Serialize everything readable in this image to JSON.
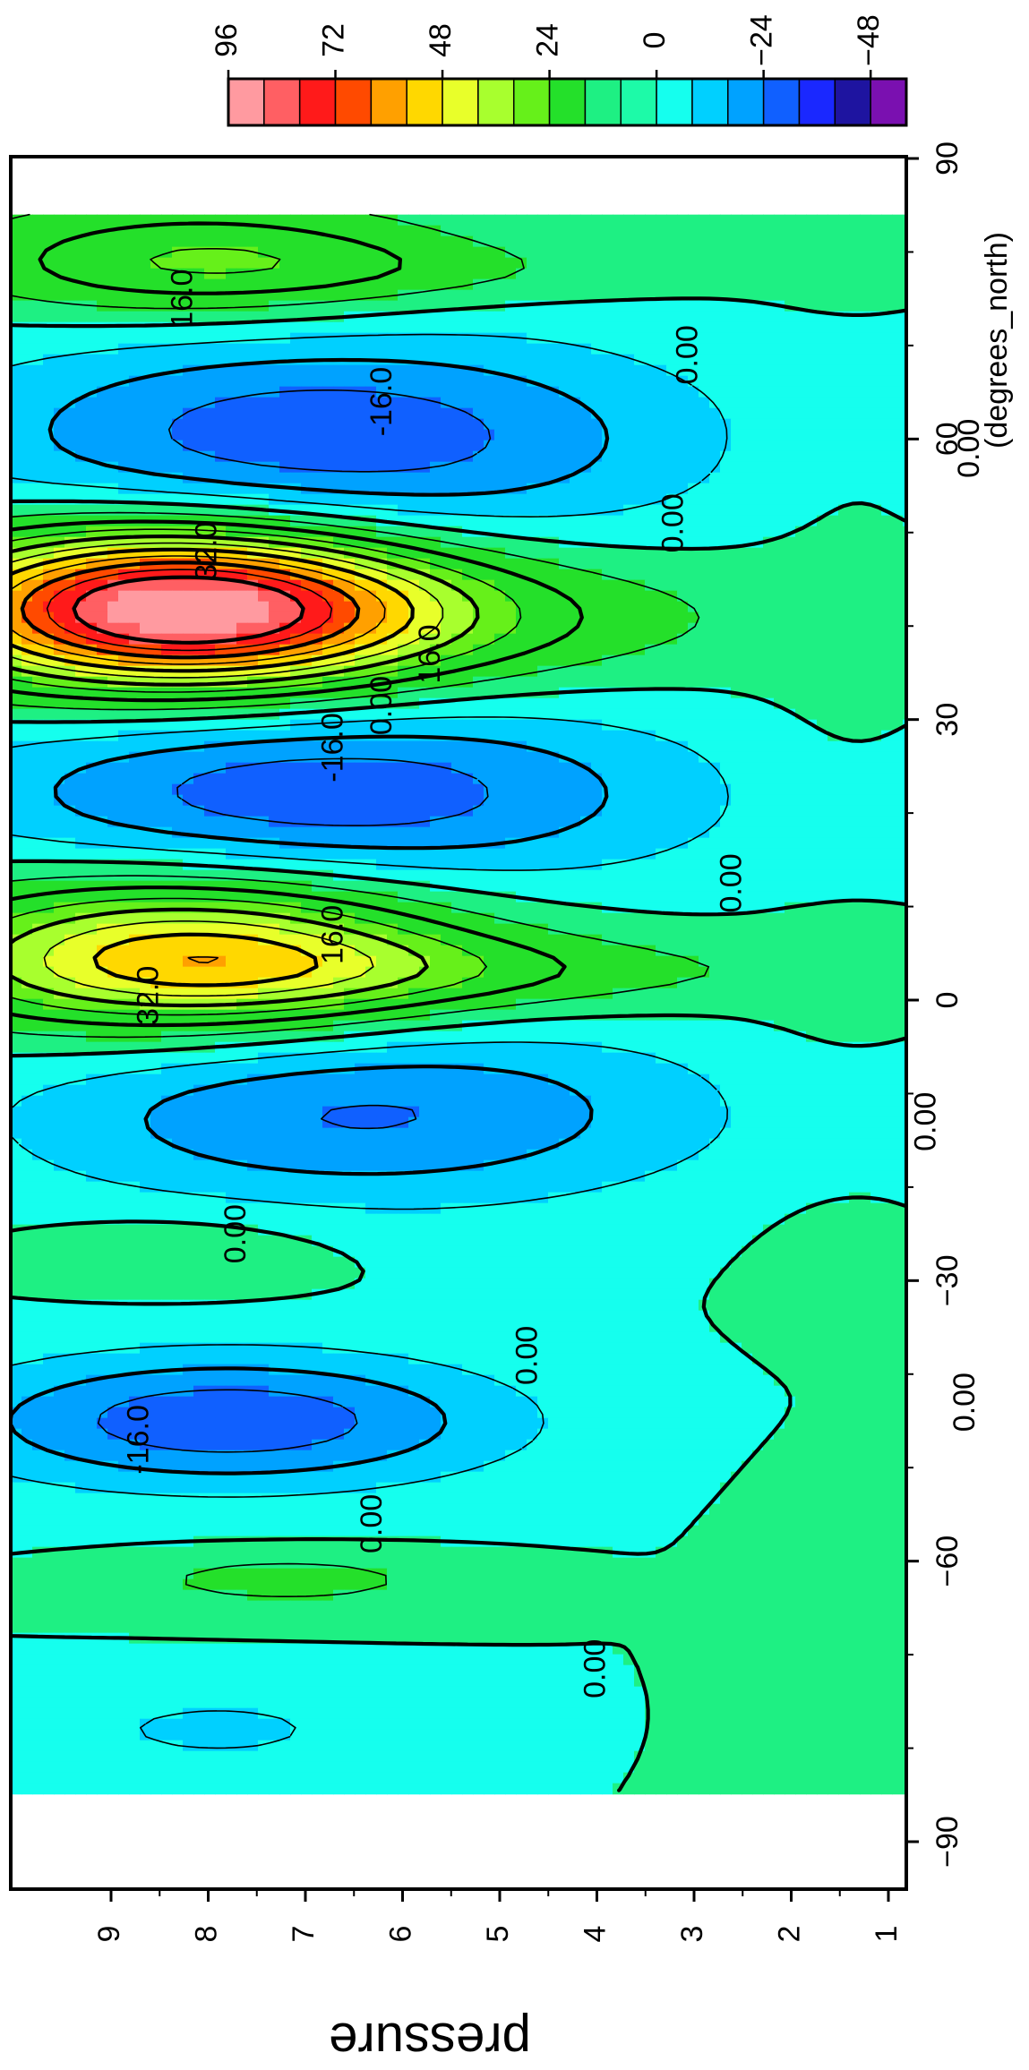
{
  "chart_data": {
    "type": "contour",
    "xlabel": "(degrees_north)",
    "ylabel": "pressure",
    "xlim": [
      -90,
      90
    ],
    "ylim": [
      0,
      9.2
    ],
    "x_ticks": [
      -90,
      -60,
      -30,
      0,
      30,
      60,
      90
    ],
    "y_ticks": [
      1,
      2,
      3,
      4,
      5,
      6,
      7,
      8,
      9
    ],
    "colorbar": {
      "tick_labels": [
        "96",
        "72",
        "48",
        "24",
        "0",
        "−24",
        "−48"
      ],
      "tick_values": [
        96,
        72,
        48,
        24,
        0,
        -24,
        -48
      ],
      "levels": [
        96,
        88,
        80,
        72,
        64,
        56,
        48,
        40,
        32,
        24,
        16,
        8,
        0,
        -8,
        -16,
        -24,
        -32,
        -40,
        -48
      ],
      "colors": [
        "#ff9aa0",
        "#ff5f63",
        "#ff1a1a",
        "#ff4a00",
        "#ffa000",
        "#ffd800",
        "#e8ff2a",
        "#a8ff2e",
        "#66f01a",
        "#24e02a",
        "#1ef083",
        "#1dfaa8",
        "#15ffee",
        "#00d0ff",
        "#00a2ff",
        "#1060ff",
        "#1a28ff",
        "#1e14a0",
        "#7a10b0"
      ]
    },
    "contour_labels": [
      {
        "text": "16.0",
        "lat": 75,
        "p": 8.25
      },
      {
        "text": "0.00",
        "lat": 69,
        "p": 3.05
      },
      {
        "text": "-16.0",
        "lat": 64,
        "p": 6.2
      },
      {
        "text": "0.00",
        "lat": 51,
        "p": 3.2
      },
      {
        "text": "32.0",
        "lat": 48,
        "p": 8.0
      },
      {
        "text": "16.0",
        "lat": 37,
        "p": 5.7
      },
      {
        "text": "0.00",
        "lat": 31.5,
        "p": 6.2
      },
      {
        "text": "-16.0",
        "lat": 27,
        "p": 6.7
      },
      {
        "text": "0.00",
        "lat": 12.5,
        "p": 2.6
      },
      {
        "text": "16.0",
        "lat": 7,
        "p": 6.7
      },
      {
        "text": "32.0",
        "lat": 0.5,
        "p": 8.6
      },
      {
        "text": "0.00",
        "lat": -13,
        "p": 0.6
      },
      {
        "text": "0.00",
        "lat": -25,
        "p": 7.7
      },
      {
        "text": "0.00",
        "lat": -38,
        "p": 4.7
      },
      {
        "text": "-16.0",
        "lat": -47,
        "p": 8.7
      },
      {
        "text": "0.00",
        "lat": -56,
        "p": 6.3
      },
      {
        "text": "0.00",
        "lat": -71.5,
        "p": 4.0
      },
      {
        "text": "0.00",
        "lat": -43,
        "p": 0.2
      },
      {
        "text": "0.00",
        "lat": 59,
        "p": 0.15
      }
    ],
    "features": [
      {
        "kind": "plus",
        "lat": 42,
        "p": 8.3,
        "a": 6,
        "b": 1.8,
        "peak": 90
      },
      {
        "kind": "plus",
        "lat": 41,
        "p": 6.0,
        "a": 5,
        "b": 2.8,
        "peak": 14
      },
      {
        "kind": "plus",
        "lat": 5,
        "p": 8.2,
        "a": 6,
        "b": 1.9,
        "peak": 50
      },
      {
        "kind": "plus",
        "lat": 3,
        "p": 5.8,
        "a": 3,
        "b": 2.8,
        "peak": 14
      },
      {
        "kind": "plus",
        "lat": 79,
        "p": 8.1,
        "a": 4.5,
        "b": 1.8,
        "peak": 24
      },
      {
        "kind": "plus",
        "lat": 78,
        "p": 5.7,
        "a": 2.5,
        "b": 2.2,
        "peak": 6
      },
      {
        "kind": "plus",
        "lat": -27,
        "p": 8.3,
        "a": 3,
        "b": 1.1,
        "peak": 8
      },
      {
        "kind": "plus",
        "lat": -62,
        "p": 7.2,
        "a": 2,
        "b": 1.2,
        "peak": 12
      },
      {
        "kind": "minus",
        "lat": 60,
        "p": 6.8,
        "a": 8,
        "b": 2.6,
        "peak": -30
      },
      {
        "kind": "minus",
        "lat": 22,
        "p": 6.8,
        "a": 7,
        "b": 2.6,
        "peak": -30
      },
      {
        "kind": "minus",
        "lat": -12,
        "p": 6.4,
        "a": 7,
        "b": 2.5,
        "peak": -25
      },
      {
        "kind": "minus",
        "lat": -45,
        "p": 7.8,
        "a": 5,
        "b": 2.0,
        "peak": -30
      },
      {
        "kind": "minus",
        "lat": -78,
        "p": 7.9,
        "a": 3,
        "b": 1.2,
        "peak": -10
      }
    ]
  }
}
